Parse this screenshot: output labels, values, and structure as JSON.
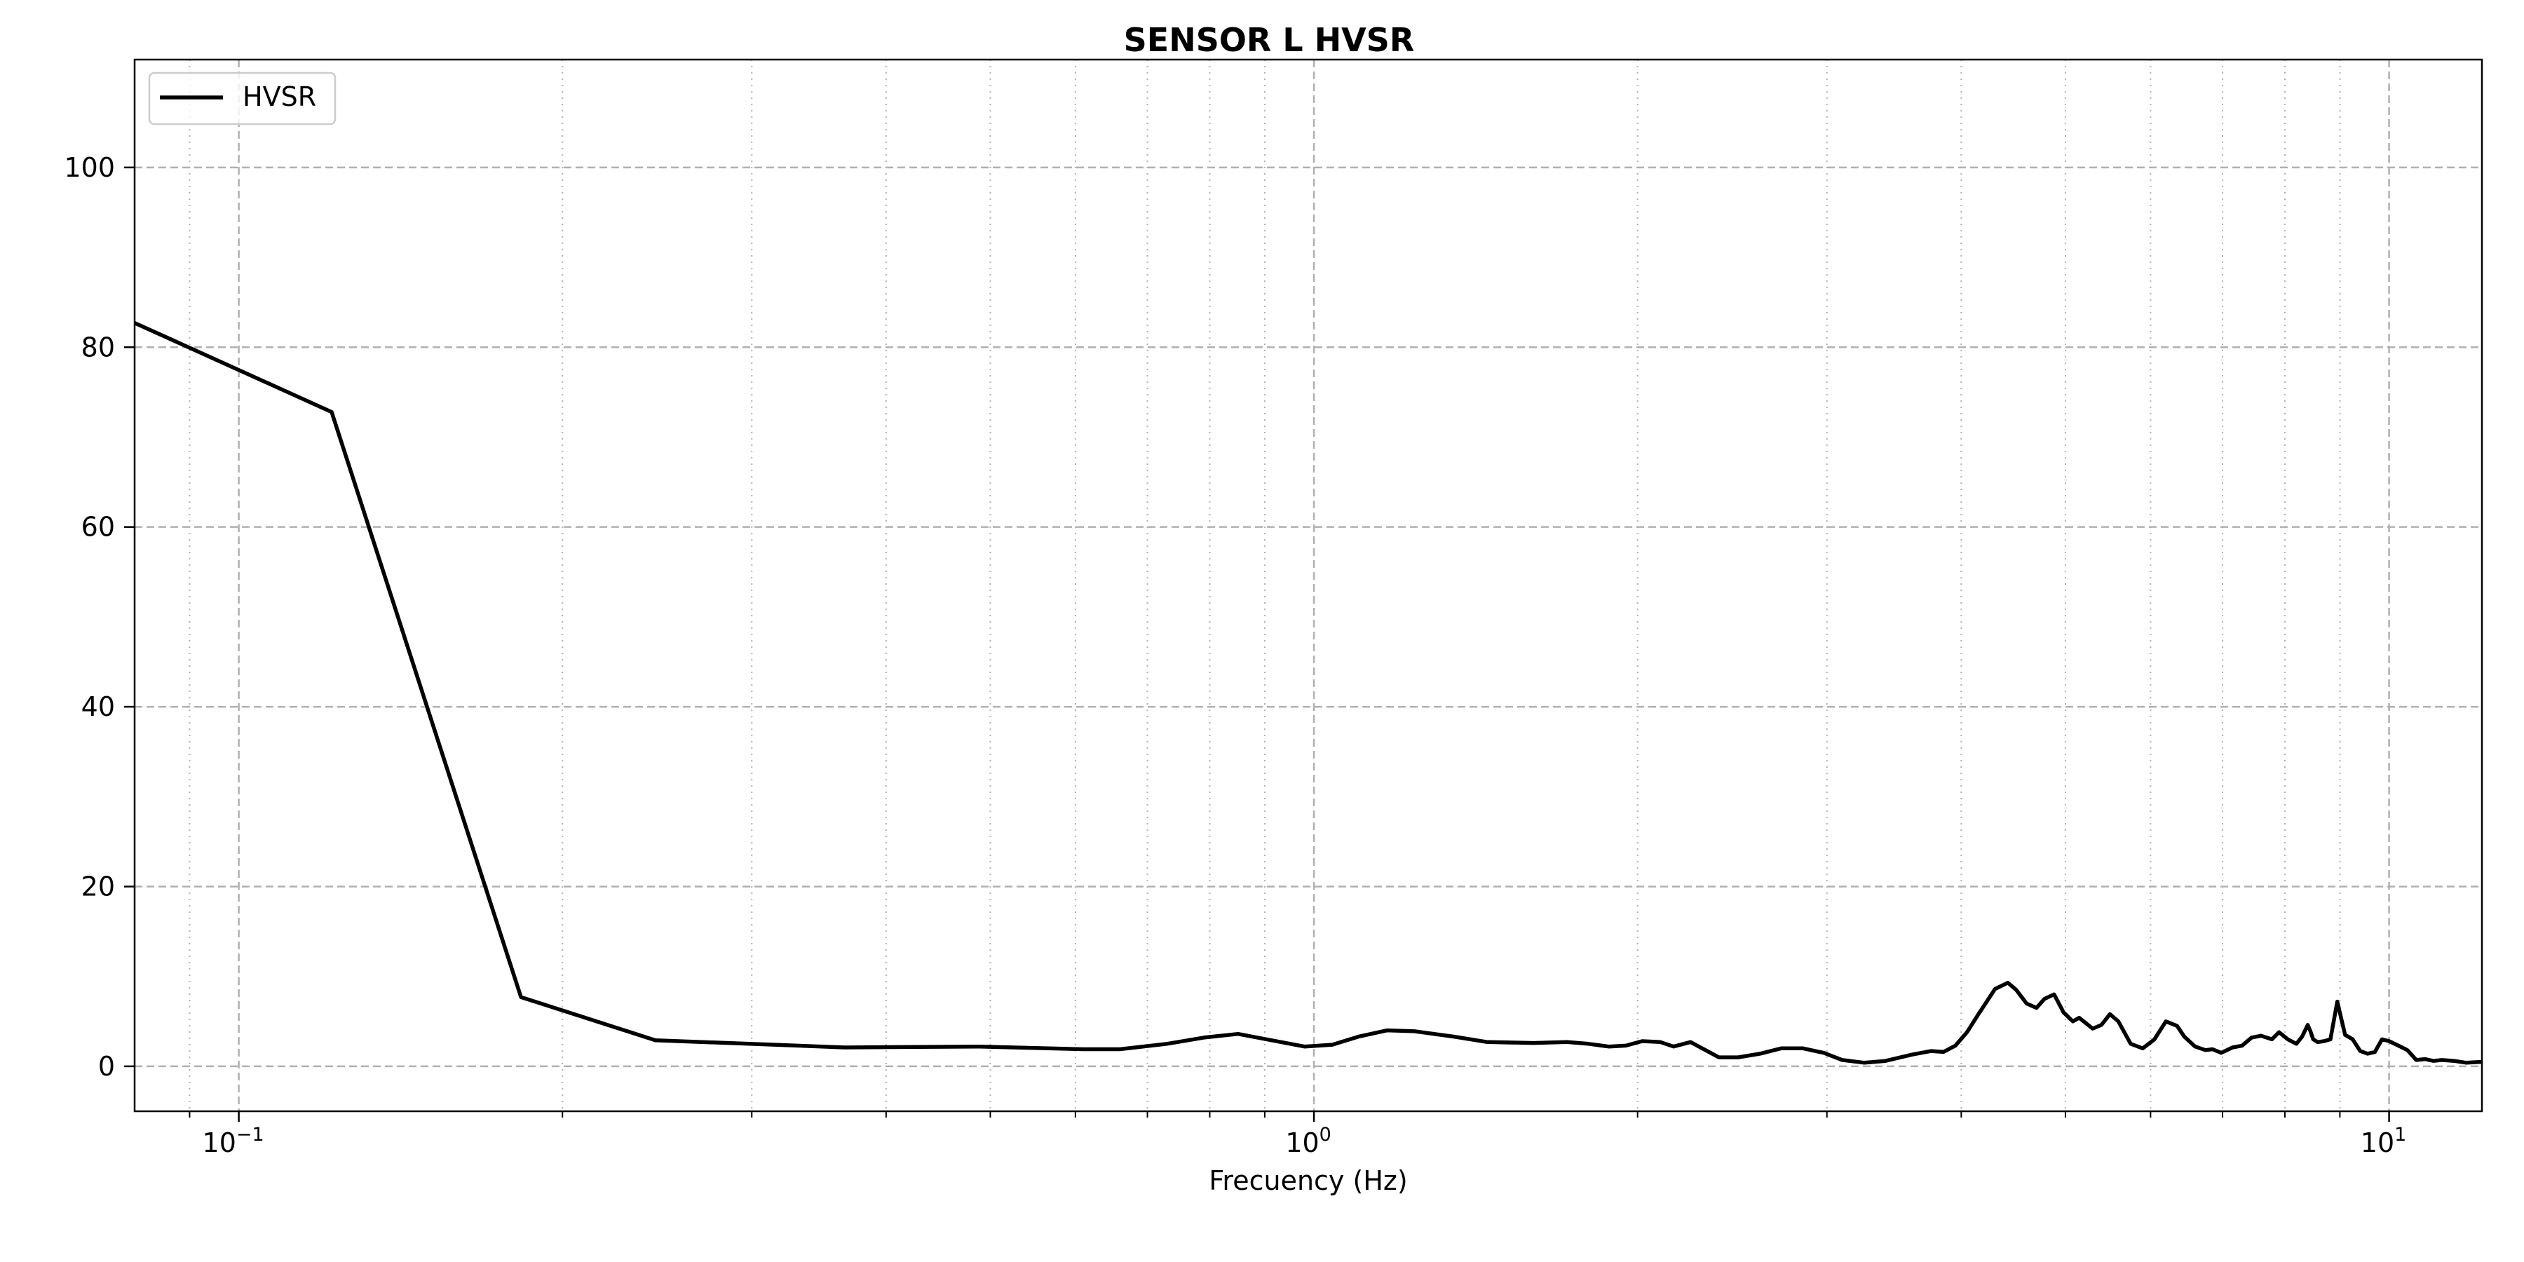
{
  "chart_data": {
    "type": "line",
    "title": "SENSOR L HVSR",
    "xlabel": "Frecuency (Hz)",
    "ylabel": "",
    "xscale": "log",
    "xlim": [
      0.08,
      12.2
    ],
    "ylim": [
      -5,
      112
    ],
    "grid": true,
    "legend_position": "top-left",
    "line_color": "#000000",
    "yticks": [
      0,
      20,
      40,
      60,
      80,
      100
    ],
    "ytick_labels": [
      "0",
      "20",
      "40",
      "60",
      "80",
      "100"
    ],
    "xticks_major": [
      {
        "base": "10",
        "exp": "−1",
        "value": 0.1
      },
      {
        "base": "10",
        "exp": "0",
        "value": 1
      },
      {
        "base": "10",
        "exp": "1",
        "value": 10
      }
    ],
    "series": [
      {
        "name": "HVSR",
        "x": [
          0.08,
          0.122,
          0.183,
          0.244,
          0.366,
          0.488,
          0.61,
          0.66,
          0.73,
          0.79,
          0.85,
          0.98,
          1.04,
          1.1,
          1.17,
          1.24,
          1.35,
          1.45,
          1.6,
          1.72,
          1.8,
          1.88,
          1.95,
          2.02,
          2.1,
          2.16,
          2.24,
          2.38,
          2.48,
          2.6,
          2.72,
          2.85,
          2.98,
          3.1,
          3.25,
          3.4,
          3.6,
          3.75,
          3.85,
          3.95,
          4.05,
          4.15,
          4.3,
          4.42,
          4.5,
          4.6,
          4.7,
          4.78,
          4.88,
          4.98,
          5.08,
          5.15,
          5.3,
          5.4,
          5.5,
          5.6,
          5.75,
          5.9,
          6.05,
          6.2,
          6.35,
          6.45,
          6.6,
          6.75,
          6.85,
          6.98,
          7.15,
          7.3,
          7.45,
          7.6,
          7.78,
          7.9,
          8.05,
          8.2,
          8.3,
          8.4,
          8.45,
          8.5,
          8.58,
          8.7,
          8.82,
          8.95,
          9.1,
          9.25,
          9.4,
          9.55,
          9.7,
          9.85,
          10.0,
          10.2,
          10.4,
          10.6,
          10.8,
          11.0,
          11.2,
          11.5,
          11.8,
          12.2
        ],
        "y": [
          82.7,
          72.8,
          7.7,
          2.9,
          2.1,
          2.2,
          1.9,
          1.9,
          2.5,
          3.2,
          3.6,
          2.2,
          2.4,
          3.3,
          4.0,
          3.9,
          3.3,
          2.7,
          2.6,
          2.7,
          2.5,
          2.2,
          2.3,
          2.8,
          2.7,
          2.2,
          2.7,
          1.0,
          1.0,
          1.4,
          2.0,
          2.0,
          1.5,
          0.7,
          0.4,
          0.6,
          1.3,
          1.7,
          1.6,
          2.3,
          3.8,
          5.8,
          8.6,
          9.3,
          8.5,
          7.0,
          6.5,
          7.5,
          8.0,
          6.0,
          5.0,
          5.4,
          4.2,
          4.6,
          5.8,
          5.0,
          2.5,
          2.0,
          3.0,
          5.0,
          4.5,
          3.3,
          2.2,
          1.8,
          1.9,
          1.5,
          2.1,
          2.3,
          3.2,
          3.4,
          3.0,
          3.8,
          3.0,
          2.5,
          3.3,
          4.6,
          3.9,
          3.0,
          2.7,
          2.8,
          3.0,
          7.2,
          3.5,
          3.0,
          1.7,
          1.4,
          1.6,
          3.0,
          2.8,
          2.3,
          1.8,
          0.7,
          0.8,
          0.6,
          0.7,
          0.6,
          0.4,
          0.5
        ]
      }
    ]
  }
}
